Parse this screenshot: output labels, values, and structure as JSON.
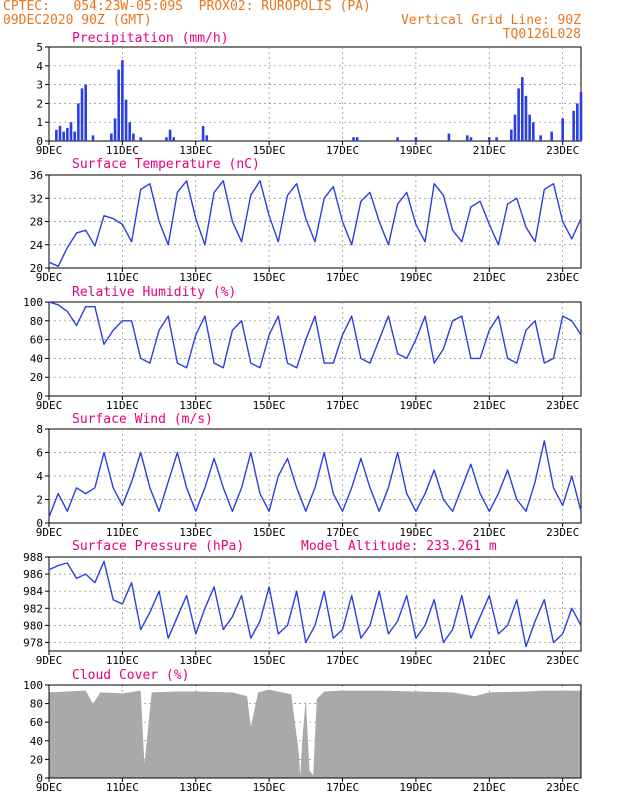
{
  "header": {
    "line1": "CPTEC:   054:23W-05:09S  PROX02: RUROPOLIS (PA)",
    "line2_left": "09DEC2020 90Z (GMT)",
    "line2_right": "Vertical Grid Line: 90Z",
    "line3_right": "TQ0126L028"
  },
  "colors": {
    "header": "#e8761e",
    "title": "#e6007e",
    "series": "#2a3fe0",
    "cloud": "#a9a9a9",
    "grid": "#888888"
  },
  "x_ticks": [
    "9DEC",
    "11DEC",
    "13DEC",
    "15DEC",
    "17DEC",
    "19DEC",
    "21DEC",
    "23DEC"
  ],
  "chart_data": [
    {
      "type": "bar",
      "title": "Precipitation (mm/h)",
      "ylim": [
        0,
        5
      ],
      "y_ticks": [
        "0",
        "1",
        "2",
        "3",
        "4",
        "5"
      ],
      "x": [
        0.2,
        0.3,
        0.4,
        0.5,
        0.6,
        0.7,
        0.8,
        0.9,
        1.0,
        1.2,
        1.7,
        1.8,
        1.9,
        2.0,
        2.1,
        2.2,
        2.3,
        2.5,
        3.2,
        3.3,
        3.4,
        4.2,
        4.3,
        8.3,
        8.4,
        9.5,
        10.0,
        10.9,
        11.4,
        11.5,
        12.0,
        12.2,
        12.6,
        12.7,
        12.8,
        12.9,
        13.0,
        13.1,
        13.2,
        13.4,
        13.7,
        14.0,
        14.3,
        14.4,
        14.5
      ],
      "values": [
        0.6,
        0.8,
        0.5,
        0.7,
        1.0,
        0.5,
        2.0,
        2.8,
        3.0,
        0.3,
        0.4,
        1.2,
        3.8,
        4.3,
        2.2,
        1.0,
        0.4,
        0.2,
        0.2,
        0.6,
        0.2,
        0.8,
        0.3,
        0.2,
        0.2,
        0.2,
        0.2,
        0.4,
        0.3,
        0.2,
        0.2,
        0.2,
        0.6,
        1.4,
        2.8,
        3.4,
        2.4,
        1.4,
        1.0,
        0.3,
        0.5,
        1.2,
        1.6,
        2.0,
        2.6
      ]
    },
    {
      "type": "line",
      "title": "Surface Temperature (nC)",
      "ylim": [
        20,
        36
      ],
      "y_ticks": [
        "20",
        "24",
        "28",
        "32",
        "36"
      ],
      "x": [
        0,
        0.25,
        0.5,
        0.75,
        1.0,
        1.25,
        1.5,
        1.75,
        2.0,
        2.25,
        2.5,
        2.75,
        3.0,
        3.25,
        3.5,
        3.75,
        4.0,
        4.25,
        4.5,
        4.75,
        5.0,
        5.25,
        5.5,
        5.75,
        6.0,
        6.25,
        6.5,
        6.75,
        7.0,
        7.25,
        7.5,
        7.75,
        8.0,
        8.25,
        8.5,
        8.75,
        9.0,
        9.25,
        9.5,
        9.75,
        10.0,
        10.25,
        10.5,
        10.75,
        11.0,
        11.25,
        11.5,
        11.75,
        12.0,
        12.25,
        12.5,
        12.75,
        13.0,
        13.25,
        13.5,
        13.75,
        14.0,
        14.25,
        14.5
      ],
      "values": [
        21.0,
        20.3,
        23.5,
        26.0,
        26.5,
        23.8,
        29.0,
        28.5,
        27.5,
        24.5,
        33.5,
        34.5,
        28.0,
        24.0,
        33.0,
        35.0,
        28.5,
        24.0,
        33.0,
        35.0,
        28.0,
        24.5,
        32.5,
        35.0,
        29.0,
        24.5,
        32.5,
        34.5,
        28.5,
        24.5,
        32.0,
        34.0,
        28.0,
        24.0,
        31.5,
        33.0,
        28.0,
        24.0,
        31.0,
        33.0,
        27.5,
        24.5,
        34.5,
        32.5,
        26.5,
        24.5,
        30.5,
        31.5,
        27.5,
        24.0,
        31.0,
        32.0,
        27.0,
        24.5,
        33.5,
        34.5,
        28.0,
        25.0,
        28.5
      ]
    },
    {
      "type": "line",
      "title": "Relative Humidity (%)",
      "ylim": [
        0,
        100
      ],
      "y_ticks": [
        "0",
        "20",
        "40",
        "60",
        "80",
        "100"
      ],
      "x": [
        0,
        0.25,
        0.5,
        0.75,
        1.0,
        1.25,
        1.5,
        1.75,
        2.0,
        2.25,
        2.5,
        2.75,
        3.0,
        3.25,
        3.5,
        3.75,
        4.0,
        4.25,
        4.5,
        4.75,
        5.0,
        5.25,
        5.5,
        5.75,
        6.0,
        6.25,
        6.5,
        6.75,
        7.0,
        7.25,
        7.5,
        7.75,
        8.0,
        8.25,
        8.5,
        8.75,
        9.0,
        9.25,
        9.5,
        9.75,
        10.0,
        10.25,
        10.5,
        10.75,
        11.0,
        11.25,
        11.5,
        11.75,
        12.0,
        12.25,
        12.5,
        12.75,
        13.0,
        13.25,
        13.5,
        13.75,
        14.0,
        14.25,
        14.5
      ],
      "values": [
        100,
        97,
        90,
        75,
        95,
        95,
        55,
        70,
        80,
        80,
        40,
        35,
        70,
        85,
        35,
        30,
        65,
        85,
        35,
        30,
        70,
        80,
        35,
        30,
        65,
        85,
        35,
        30,
        60,
        85,
        35,
        35,
        65,
        85,
        40,
        35,
        60,
        85,
        45,
        40,
        60,
        85,
        35,
        50,
        80,
        85,
        40,
        40,
        70,
        85,
        40,
        35,
        70,
        80,
        35,
        40,
        85,
        80,
        65
      ]
    },
    {
      "type": "line",
      "title": "Surface Wind (m/s)",
      "ylim": [
        0,
        8
      ],
      "y_ticks": [
        "0",
        "2",
        "4",
        "6",
        "8"
      ],
      "x": [
        0,
        0.25,
        0.5,
        0.75,
        1.0,
        1.25,
        1.5,
        1.75,
        2.0,
        2.25,
        2.5,
        2.75,
        3.0,
        3.25,
        3.5,
        3.75,
        4.0,
        4.25,
        4.5,
        4.75,
        5.0,
        5.25,
        5.5,
        5.75,
        6.0,
        6.25,
        6.5,
        6.75,
        7.0,
        7.25,
        7.5,
        7.75,
        8.0,
        8.25,
        8.5,
        8.75,
        9.0,
        9.25,
        9.5,
        9.75,
        10.0,
        10.25,
        10.5,
        10.75,
        11.0,
        11.25,
        11.5,
        11.75,
        12.0,
        12.25,
        12.5,
        12.75,
        13.0,
        13.25,
        13.5,
        13.75,
        14.0,
        14.25,
        14.5
      ],
      "values": [
        0.5,
        2.5,
        1.0,
        3.0,
        2.5,
        3.0,
        6.0,
        3.0,
        1.5,
        3.5,
        6.0,
        3.0,
        1.0,
        3.5,
        6.0,
        3.0,
        1.0,
        3.0,
        5.5,
        3.0,
        1.0,
        3.0,
        6.0,
        2.5,
        1.0,
        4.0,
        5.5,
        3.0,
        1.0,
        3.0,
        6.0,
        2.5,
        1.0,
        3.0,
        5.5,
        3.0,
        1.0,
        3.0,
        6.0,
        2.5,
        1.0,
        2.5,
        4.5,
        2.0,
        1.0,
        3.0,
        5.0,
        2.5,
        1.0,
        2.5,
        4.5,
        2.0,
        1.0,
        3.5,
        7.0,
        3.0,
        1.5,
        4.0,
        1.0
      ]
    },
    {
      "type": "line",
      "title": "Surface Pressure (hPa)",
      "annotation": "Model Altitude: 233.261 m",
      "ylim": [
        977,
        988
      ],
      "y_ticks": [
        "978",
        "980",
        "982",
        "984",
        "986",
        "988"
      ],
      "x": [
        0,
        0.25,
        0.5,
        0.75,
        1.0,
        1.25,
        1.5,
        1.75,
        2.0,
        2.25,
        2.5,
        2.75,
        3.0,
        3.25,
        3.5,
        3.75,
        4.0,
        4.25,
        4.5,
        4.75,
        5.0,
        5.25,
        5.5,
        5.75,
        6.0,
        6.25,
        6.5,
        6.75,
        7.0,
        7.25,
        7.5,
        7.75,
        8.0,
        8.25,
        8.5,
        8.75,
        9.0,
        9.25,
        9.5,
        9.75,
        10.0,
        10.25,
        10.5,
        10.75,
        11.0,
        11.25,
        11.5,
        11.75,
        12.0,
        12.25,
        12.5,
        12.75,
        13.0,
        13.25,
        13.5,
        13.75,
        14.0,
        14.25,
        14.5
      ],
      "values": [
        986.5,
        987.0,
        987.3,
        985.5,
        986.0,
        985.0,
        987.5,
        983.0,
        982.5,
        985.0,
        979.5,
        981.5,
        984.0,
        978.5,
        981.0,
        983.5,
        979.0,
        982.0,
        984.5,
        979.5,
        981.0,
        983.5,
        978.5,
        980.5,
        984.5,
        979.0,
        980.0,
        984.0,
        978.0,
        980.0,
        984.0,
        978.5,
        979.5,
        983.5,
        978.5,
        980.0,
        984.0,
        979.0,
        980.5,
        983.5,
        978.5,
        980.0,
        983.0,
        978.0,
        979.5,
        983.5,
        978.5,
        981.0,
        983.5,
        979.0,
        980.0,
        983.0,
        977.5,
        980.5,
        983.0,
        978.0,
        979.0,
        982.0,
        980.0
      ]
    },
    {
      "type": "area",
      "title": "Cloud Cover (%)",
      "ylim": [
        0,
        100
      ],
      "y_ticks": [
        "0",
        "20",
        "40",
        "60",
        "80",
        "100"
      ],
      "x": [
        0,
        0.5,
        1.0,
        1.2,
        1.4,
        2.0,
        2.5,
        2.6,
        2.8,
        3.5,
        4.0,
        5.0,
        5.4,
        5.5,
        5.7,
        6.0,
        6.6,
        6.8,
        6.85,
        6.9,
        7.0,
        7.1,
        7.2,
        7.3,
        7.5,
        8.0,
        9.0,
        10.0,
        11.0,
        11.6,
        12.0,
        13.0,
        13.5,
        14.0,
        14.5
      ],
      "values": [
        92,
        93,
        94,
        80,
        92,
        91,
        94,
        15,
        92,
        93,
        93,
        92,
        88,
        55,
        92,
        95,
        90,
        30,
        2,
        40,
        85,
        8,
        3,
        85,
        93,
        94,
        94,
        93,
        92,
        88,
        92,
        93,
        94,
        94,
        94
      ]
    }
  ]
}
